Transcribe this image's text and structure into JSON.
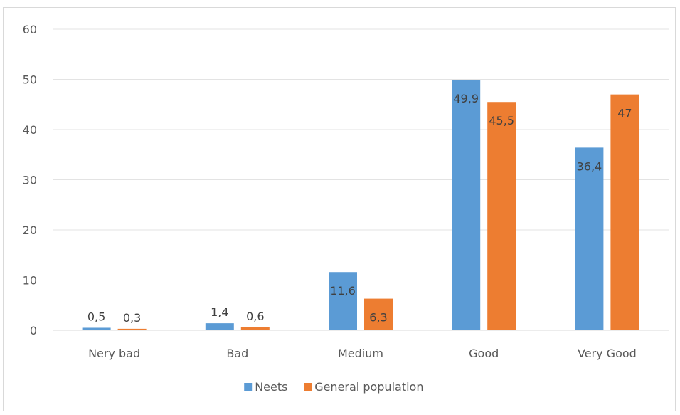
{
  "chart_data": {
    "type": "bar",
    "categories": [
      "Nery bad",
      "Bad",
      "Medium",
      "Good",
      "Very Good"
    ],
    "series": [
      {
        "name": "Neets",
        "values": [
          0.5,
          1.4,
          11.6,
          49.9,
          36.4
        ],
        "labels": [
          "0,5",
          "1,4",
          "11,6",
          "49,9",
          "36,4"
        ],
        "color": "#5b9bd5"
      },
      {
        "name": "General population",
        "values": [
          0.3,
          0.6,
          6.3,
          45.5,
          47
        ],
        "labels": [
          "0,3",
          "0,6",
          "6,3",
          "45,5",
          "47"
        ],
        "color": "#ed7d31"
      }
    ],
    "ylim": [
      0,
      60
    ],
    "yticks": [
      0,
      10,
      20,
      30,
      40,
      50,
      60
    ],
    "grid": true,
    "legend_position": "bottom",
    "title": "",
    "xlabel": "",
    "ylabel": ""
  }
}
